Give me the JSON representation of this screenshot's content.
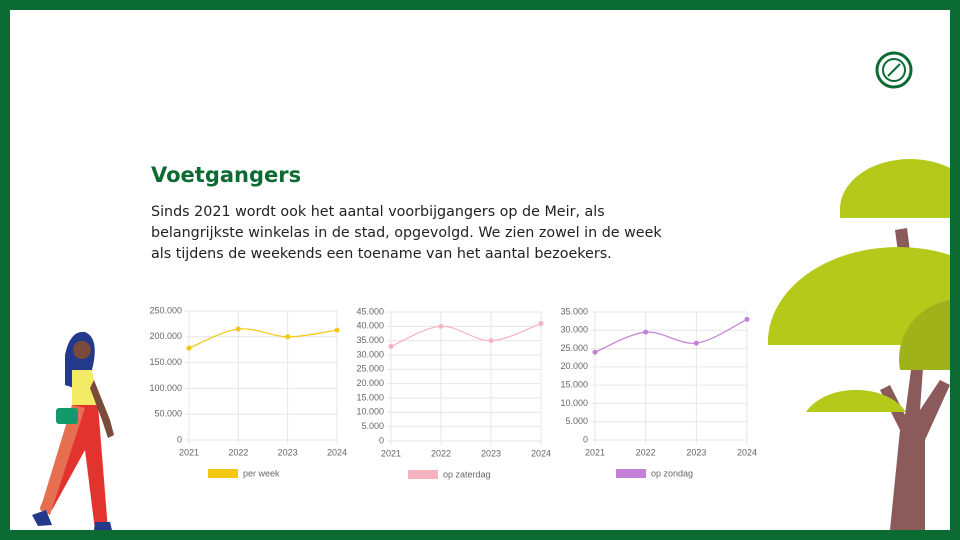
{
  "slide": {
    "title": "Voetgangers",
    "body": [
      "Sinds 2021 wordt ook het aantal voorbijgangers op de Meir, als",
      "belangrijkste winkelas in de stad, opgevolgd. We zien zowel in de week",
      "als tijdens de weekends een toename van het aantal bezoekers."
    ]
  },
  "chart_data": [
    {
      "type": "line",
      "categories": [
        "2021",
        "2022",
        "2023",
        "2024"
      ],
      "series": [
        {
          "name": "per week",
          "color": "#f2c811",
          "values": [
            178000,
            215000,
            200000,
            213000
          ]
        }
      ],
      "ylim": [
        0,
        250000
      ],
      "yticks": [
        0,
        {
          "value": 50000,
          "label": "50.000"
        },
        {
          "value": 100000,
          "label": "100.000"
        },
        {
          "value": 150000,
          "label": "150.000"
        },
        {
          "value": 200000,
          "label": "200.000"
        },
        {
          "value": 250000,
          "label": "250.000"
        }
      ],
      "grid": true
    },
    {
      "type": "line",
      "categories": [
        "2021",
        "2022",
        "2023",
        "2024"
      ],
      "series": [
        {
          "name": "op zaterdag",
          "color": "#f5b3c0",
          "values": [
            33000,
            40000,
            35000,
            41000
          ]
        }
      ],
      "ylim": [
        0,
        45000
      ],
      "yticks": [
        0,
        {
          "value": 5000,
          "label": "5.000"
        },
        {
          "value": 10000,
          "label": "10.000"
        },
        {
          "value": 15000,
          "label": "15.000"
        },
        {
          "value": 20000,
          "label": "20.000"
        },
        {
          "value": 25000,
          "label": "25.000"
        },
        {
          "value": 30000,
          "label": "30.000"
        },
        {
          "value": 35000,
          "label": "35.000"
        },
        {
          "value": 40000,
          "label": "40.000"
        },
        {
          "value": 45000,
          "label": "45.000"
        }
      ],
      "grid": true
    },
    {
      "type": "line",
      "categories": [
        "2021",
        "2022",
        "2023",
        "2024"
      ],
      "series": [
        {
          "name": "op zondag",
          "color": "#c47fd6",
          "values": [
            24000,
            29500,
            26500,
            33000
          ]
        }
      ],
      "ylim": [
        0,
        35000
      ],
      "yticks": [
        0,
        {
          "value": 5000,
          "label": "5.000"
        },
        {
          "value": 10000,
          "label": "10.000"
        },
        {
          "value": 15000,
          "label": "15.000"
        },
        {
          "value": 20000,
          "label": "20.000"
        },
        {
          "value": 25000,
          "label": "25.000"
        },
        {
          "value": 30000,
          "label": "30.000"
        },
        {
          "value": 35000,
          "label": "35.000"
        }
      ],
      "grid": true
    }
  ]
}
